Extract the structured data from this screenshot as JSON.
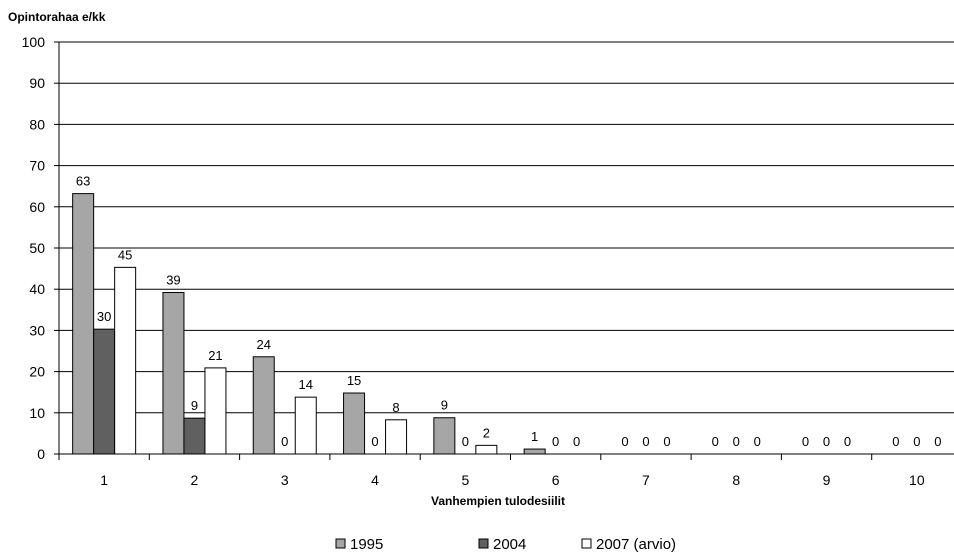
{
  "chart_data": {
    "type": "bar",
    "ylabel": "Opintorahaa e/kk",
    "xlabel": "Vanhempien tulodesiilit",
    "categories": [
      "1",
      "2",
      "3",
      "4",
      "5",
      "6",
      "7",
      "8",
      "9",
      "10"
    ],
    "ylim": [
      0,
      100
    ],
    "yticks": [
      "0",
      "10",
      "20",
      "30",
      "40",
      "50",
      "60",
      "70",
      "80",
      "90",
      "100"
    ],
    "grid": true,
    "legend_position": "bottom",
    "series": [
      {
        "name": "1995",
        "color": "#a6a6a6",
        "values": [
          63,
          39,
          24,
          15,
          9,
          1,
          null,
          null,
          null,
          null
        ]
      },
      {
        "name": "2004",
        "color": "#606060",
        "values": [
          30,
          9,
          0,
          0,
          0,
          0,
          0,
          0,
          0,
          0
        ]
      },
      {
        "name": "2007 (arvio)",
        "color": "#ffffff",
        "values": [
          45,
          21,
          14,
          8,
          2,
          0,
          0,
          0,
          0,
          0
        ]
      }
    ],
    "series_drawn_values": [
      [
        63.2,
        39.2,
        23.6,
        14.8,
        8.8,
        1.2,
        0,
        0,
        0,
        0
      ],
      [
        30.3,
        8.7,
        0,
        0,
        0,
        0,
        0,
        0,
        0,
        0
      ],
      [
        45.3,
        20.9,
        13.8,
        8.3,
        2.1,
        0,
        0,
        0,
        0,
        0
      ]
    ],
    "data_labels": [
      [
        "63",
        "39",
        "24",
        "15",
        "9",
        "1",
        "0",
        "0",
        "0",
        "0"
      ],
      [
        "30",
        "9",
        "0",
        "0",
        "0",
        "0",
        "0",
        "0",
        "0",
        "0"
      ],
      [
        "45",
        "21",
        "14",
        "8",
        "2",
        "0",
        "0",
        "0",
        "0",
        "0"
      ]
    ]
  }
}
